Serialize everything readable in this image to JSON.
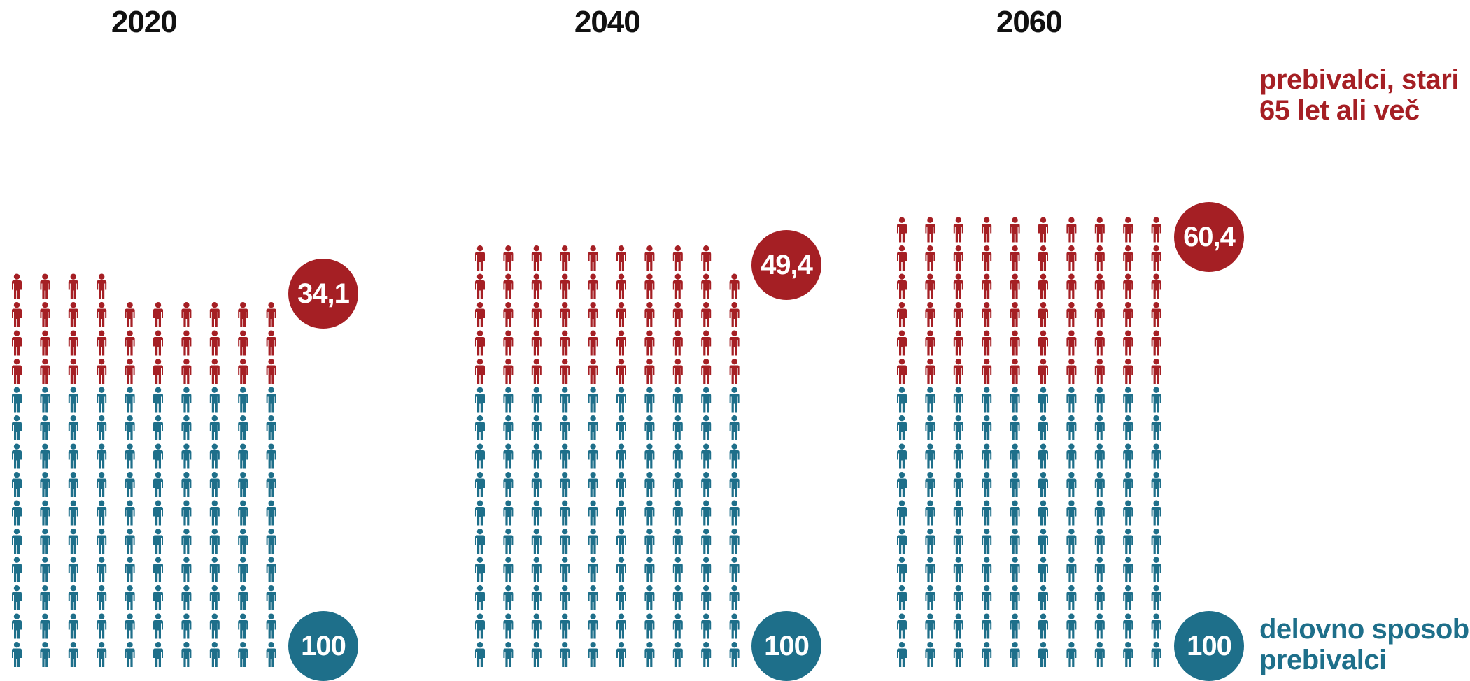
{
  "colors": {
    "elderly": "#a51f24",
    "working": "#1e6f8a"
  },
  "legend": {
    "elderly_line1": "prebivalci, stari",
    "elderly_line2": "65 let ali več",
    "working_line1": "delovno sposobni",
    "working_line2": "prebivalci"
  },
  "chart_data": {
    "type": "pictogram",
    "categories": [
      "2020",
      "2040",
      "2060"
    ],
    "series": [
      {
        "name": "delovno sposobni prebivalci",
        "values": [
          100,
          100,
          100
        ]
      },
      {
        "name": "prebivalci, stari 65 let ali več",
        "values": [
          34.1,
          49.4,
          60.4
        ]
      }
    ],
    "labels": {
      "working": [
        "100",
        "100",
        "100"
      ],
      "elderly": [
        "34,1",
        "49,4",
        "60,4"
      ]
    },
    "icon_unit": "1 person per icon, columns of 10"
  }
}
